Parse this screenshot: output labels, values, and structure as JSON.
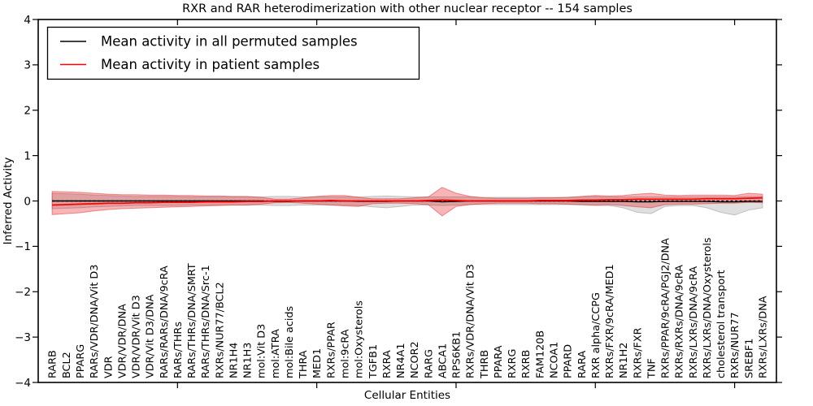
{
  "chart_data": {
    "type": "line",
    "title": "RXR and RAR heterodimerization with other nuclear receptor -- 154 samples",
    "xlabel": "Cellular Entities",
    "ylabel": "Inferred Activity",
    "xlim": [
      0,
      53
    ],
    "ylim": [
      -4,
      4
    ],
    "yticks": [
      -4,
      -3,
      -2,
      -1,
      0,
      1,
      2,
      3,
      4
    ],
    "xticks": [
      10,
      20,
      30,
      40,
      50
    ],
    "grid": false,
    "legend_position": "upper left",
    "categories": [
      "RARB",
      "BCL2",
      "PPARG",
      "RARs/VDR/DNA/Vit D3",
      "VDR",
      "VDR/VDR/DNA",
      "VDR/VDR/Vit D3",
      "VDR/Vit D3/DNA",
      "RARs/RARs/DNA/9cRA",
      "RARs/THRs",
      "RARs/THRs/DNA/SMRT",
      "RARs/THRs/DNA/Src-1",
      "RXRs/NUR77/BCL2",
      "NR1H4",
      "NR1H3",
      "mol:Vit D3",
      "mol:ATRA",
      "mol:Bile acids",
      "THRA",
      "MED1",
      "RXRs/PPAR",
      "mol:9cRA",
      "mol:Oxysterols",
      "TGFB1",
      "RXRA",
      "NR4A1",
      "NCOR2",
      "RARG",
      "ABCA1",
      "RPS6KB1",
      "RXRs/VDR/DNA/Vit D3",
      "THRB",
      "PPARA",
      "RXRG",
      "RXRB",
      "FAM120B",
      "NCOA1",
      "PPARD",
      "RARA",
      "RXR alpha/CCPG",
      "RXRs/FXR/9cRA/MED1",
      "NR1H2",
      "RXRs/FXR",
      "TNF",
      "RXRs/PPAR/9cRA/PGJ2/DNA",
      "RXRs/RXRs/DNA/9cRA",
      "RXRs/LXRs/DNA/9cRA",
      "RXRs/LXRs/DNA/Oxysterols",
      "cholesterol transport",
      "RXRs/NUR77",
      "SREBF1",
      "RXRs/LXRs/DNA"
    ],
    "series": [
      {
        "name": "Mean activity in all permuted samples",
        "color": "#000000",
        "style": "solid",
        "values": [
          0.0,
          0.0,
          0.0,
          0.0,
          0.0,
          0.0,
          0.0,
          0.0,
          0.0,
          0.0,
          0.0,
          0.0,
          0.0,
          0.0,
          0.0,
          0.0,
          -0.01,
          -0.01,
          0.0,
          0.0,
          0.0,
          0.0,
          -0.01,
          -0.01,
          -0.01,
          0.0,
          0.0,
          0.0,
          -0.02,
          -0.01,
          0.0,
          0.0,
          0.0,
          0.0,
          0.0,
          0.0,
          0.0,
          0.0,
          -0.01,
          -0.01,
          -0.01,
          -0.01,
          -0.02,
          -0.02,
          -0.01,
          -0.01,
          -0.01,
          -0.01,
          -0.02,
          -0.02,
          -0.01,
          -0.01
        ]
      },
      {
        "name": "Mean activity in patient samples",
        "color": "#ff0000",
        "style": "solid",
        "values": [
          -0.09,
          -0.08,
          -0.07,
          -0.06,
          -0.05,
          -0.05,
          -0.04,
          -0.04,
          -0.03,
          -0.03,
          -0.03,
          -0.02,
          -0.02,
          -0.02,
          -0.01,
          -0.01,
          0.0,
          0.0,
          0.0,
          0.0,
          0.01,
          0.0,
          0.0,
          0.0,
          0.0,
          0.0,
          0.0,
          0.01,
          0.02,
          0.01,
          0.0,
          0.0,
          0.0,
          0.0,
          0.0,
          0.01,
          0.01,
          0.01,
          0.02,
          0.02,
          0.03,
          0.03,
          0.04,
          0.04,
          0.04,
          0.04,
          0.04,
          0.05,
          0.05,
          0.05,
          0.06,
          0.07
        ]
      },
      {
        "name": "zero reference",
        "color": "#000000",
        "style": "dashed",
        "values": [
          0,
          0,
          0,
          0,
          0,
          0,
          0,
          0,
          0,
          0,
          0,
          0,
          0,
          0,
          0,
          0,
          0,
          0,
          0,
          0,
          0,
          0,
          0,
          0,
          0,
          0,
          0,
          0,
          0,
          0,
          0,
          0,
          0,
          0,
          0,
          0,
          0,
          0,
          0,
          0,
          0,
          0,
          0,
          0,
          0,
          0,
          0,
          0,
          0,
          0,
          0,
          0
        ]
      }
    ],
    "bands": [
      {
        "name": "permuted samples spread",
        "fill": "rgba(130,130,130,0.26)",
        "edge": "rgba(110,110,110,0.35)",
        "upper": [
          0.17,
          0.16,
          0.15,
          0.13,
          0.12,
          0.11,
          0.1,
          0.1,
          0.1,
          0.1,
          0.09,
          0.09,
          0.09,
          0.09,
          0.09,
          0.09,
          0.1,
          0.1,
          0.09,
          0.09,
          0.09,
          0.09,
          0.09,
          0.1,
          0.11,
          0.1,
          0.09,
          0.09,
          0.09,
          0.09,
          0.09,
          0.08,
          0.08,
          0.08,
          0.08,
          0.08,
          0.08,
          0.08,
          0.09,
          0.1,
          0.09,
          0.09,
          0.09,
          0.09,
          0.09,
          0.09,
          0.09,
          0.09,
          0.09,
          0.09,
          0.1,
          0.1
        ],
        "lower": [
          -0.17,
          -0.16,
          -0.15,
          -0.13,
          -0.12,
          -0.11,
          -0.1,
          -0.1,
          -0.1,
          -0.1,
          -0.09,
          -0.09,
          -0.09,
          -0.09,
          -0.09,
          -0.09,
          -0.1,
          -0.1,
          -0.09,
          -0.09,
          -0.09,
          -0.09,
          -0.1,
          -0.13,
          -0.15,
          -0.12,
          -0.09,
          -0.09,
          -0.1,
          -0.09,
          -0.08,
          -0.08,
          -0.08,
          -0.08,
          -0.08,
          -0.08,
          -0.08,
          -0.08,
          -0.09,
          -0.1,
          -0.1,
          -0.15,
          -0.25,
          -0.28,
          -0.12,
          -0.1,
          -0.1,
          -0.15,
          -0.25,
          -0.31,
          -0.2,
          -0.15
        ]
      },
      {
        "name": "patient samples spread",
        "fill": "rgba(228,26,28,0.32)",
        "edge": "rgba(228,26,28,0.45)",
        "upper": [
          0.21,
          0.2,
          0.19,
          0.17,
          0.15,
          0.14,
          0.14,
          0.13,
          0.13,
          0.12,
          0.12,
          0.11,
          0.11,
          0.1,
          0.1,
          0.08,
          0.04,
          0.04,
          0.07,
          0.1,
          0.12,
          0.12,
          0.08,
          0.05,
          0.05,
          0.05,
          0.07,
          0.09,
          0.3,
          0.17,
          0.1,
          0.07,
          0.06,
          0.06,
          0.06,
          0.07,
          0.07,
          0.08,
          0.1,
          0.12,
          0.11,
          0.12,
          0.15,
          0.17,
          0.13,
          0.12,
          0.13,
          0.13,
          0.13,
          0.12,
          0.17,
          0.15
        ],
        "lower": [
          -0.3,
          -0.28,
          -0.26,
          -0.22,
          -0.19,
          -0.17,
          -0.16,
          -0.15,
          -0.14,
          -0.13,
          -0.12,
          -0.11,
          -0.1,
          -0.09,
          -0.09,
          -0.07,
          -0.04,
          -0.03,
          -0.05,
          -0.07,
          -0.09,
          -0.11,
          -0.12,
          -0.06,
          -0.05,
          -0.05,
          -0.06,
          -0.08,
          -0.33,
          -0.12,
          -0.08,
          -0.06,
          -0.05,
          -0.05,
          -0.05,
          -0.06,
          -0.06,
          -0.07,
          -0.08,
          -0.09,
          -0.08,
          -0.1,
          -0.13,
          -0.15,
          -0.08,
          -0.07,
          -0.07,
          -0.06,
          -0.05,
          -0.05,
          -0.03,
          -0.04
        ]
      }
    ]
  },
  "legend": {
    "items": [
      {
        "label": "Mean activity in all permuted samples",
        "color": "#000000"
      },
      {
        "label": "Mean activity in patient samples",
        "color": "#ff0000"
      }
    ]
  }
}
